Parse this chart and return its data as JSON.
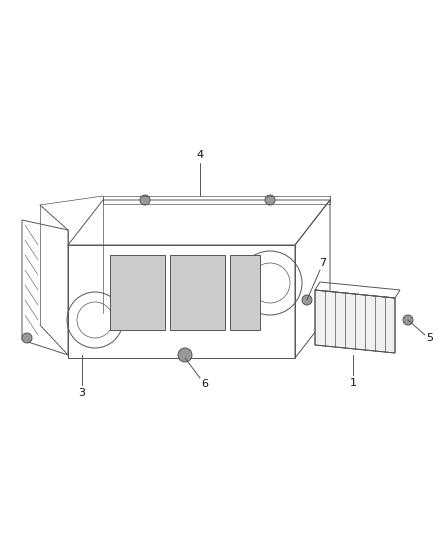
{
  "bg_color": "#ffffff",
  "line_color": "#555555",
  "label_color": "#111111",
  "fig_width": 4.38,
  "fig_height": 5.33,
  "dpi": 100,
  "lw_main": 0.7,
  "lw_thin": 0.5,
  "label_fontsize": 8
}
